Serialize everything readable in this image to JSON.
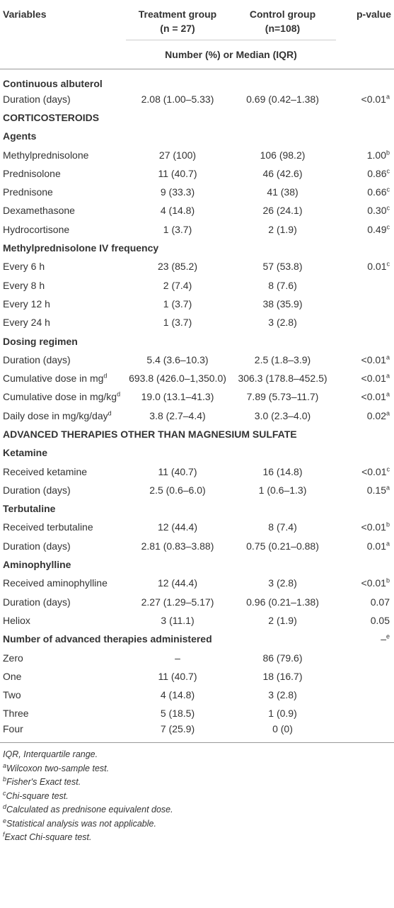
{
  "header": {
    "variables": "Variables",
    "treatment": "Treatment group",
    "treatment_n": "(n = 27)",
    "control": "Control group",
    "control_n": "(n=108)",
    "p": "p-value",
    "subheader": "Number (%) or Median (IQR)"
  },
  "rows": [
    {
      "heading": "Continuous albuterol"
    },
    {
      "label": "Duration (days)",
      "treatment": "2.08 (1.00–5.33)",
      "control": "0.69 (0.42–1.38)",
      "p": "<0.01",
      "p_sup": "a"
    },
    {
      "heading": "CORTICOSTEROIDS"
    },
    {
      "heading": "Agents"
    },
    {
      "label": "Methylprednisolone",
      "treatment": "27 (100)",
      "control": "106 (98.2)",
      "p": "1.00",
      "p_sup": "b"
    },
    {
      "label": "Prednisolone",
      "treatment": "11 (40.7)",
      "control": "46 (42.6)",
      "p": "0.86",
      "p_sup": "c"
    },
    {
      "label": "Prednisone",
      "treatment": "9 (33.3)",
      "control": "41 (38)",
      "p": "0.66",
      "p_sup": "c"
    },
    {
      "label": "Dexamethasone",
      "treatment": "4 (14.8)",
      "control": "26 (24.1)",
      "p": "0.30",
      "p_sup": "c"
    },
    {
      "label": "Hydrocortisone",
      "treatment": "1 (3.7)",
      "control": "2 (1.9)",
      "p": "0.49",
      "p_sup": "c"
    },
    {
      "heading": "Methylprednisolone IV frequency"
    },
    {
      "label": "Every 6 h",
      "treatment": "23 (85.2)",
      "control": "57 (53.8)",
      "p": "0.01",
      "p_sup": "c"
    },
    {
      "label": "Every 8 h",
      "treatment": "2 (7.4)",
      "control": "8 (7.6)"
    },
    {
      "label": "Every 12 h",
      "treatment": "1 (3.7)",
      "control": "38 (35.9)"
    },
    {
      "label": "Every 24 h",
      "treatment": "1 (3.7)",
      "control": "3 (2.8)"
    },
    {
      "heading": "Dosing regimen"
    },
    {
      "label": "Duration (days)",
      "treatment": "5.4 (3.6–10.3)",
      "control": "2.5 (1.8–3.9)",
      "p": "<0.01",
      "p_sup": "a"
    },
    {
      "label": "Cumulative dose in mg",
      "label_sup": "d",
      "treatment": "693.8 (426.0–1,350.0)",
      "control": "306.3 (178.8–452.5)",
      "p": "<0.01",
      "p_sup": "a"
    },
    {
      "label": "Cumulative dose in mg/kg",
      "label_sup": "d",
      "treatment": "19.0 (13.1–41.3)",
      "control": "7.89 (5.73–11.7)",
      "p": "<0.01",
      "p_sup": "a"
    },
    {
      "label": "Daily dose in mg/kg/day",
      "label_sup": "d",
      "treatment": "3.8 (2.7–4.4)",
      "control": "3.0 (2.3–4.0)",
      "p": "0.02",
      "p_sup": "a"
    },
    {
      "heading": "ADVANCED THERAPIES OTHER THAN MAGNESIUM SULFATE"
    },
    {
      "heading": "Ketamine"
    },
    {
      "label": "Received ketamine",
      "treatment": "11 (40.7)",
      "control": "16 (14.8)",
      "p": "<0.01",
      "p_sup": "c"
    },
    {
      "label": "Duration (days)",
      "treatment": "2.5 (0.6–6.0)",
      "control": "1 (0.6–1.3)",
      "p": "0.15",
      "p_sup": "a"
    },
    {
      "heading": "Terbutaline"
    },
    {
      "label": "Received terbutaline",
      "treatment": "12 (44.4)",
      "control": "8 (7.4)",
      "p": "<0.01",
      "p_sup": "b"
    },
    {
      "label": "Duration (days)",
      "treatment": "2.81 (0.83–3.88)",
      "control": "0.75 (0.21–0.88)",
      "p": "0.01",
      "p_sup": "a"
    },
    {
      "heading": "Aminophylline"
    },
    {
      "label": "Received aminophylline",
      "treatment": "12 (44.4)",
      "control": "3 (2.8)",
      "p": "<0.01",
      "p_sup": "b"
    },
    {
      "label": "Duration (days)",
      "treatment": "2.27 (1.29–5.17)",
      "control": "0.96 (0.21–1.38)",
      "p": "0.07"
    },
    {
      "label": "Heliox",
      "treatment": "3 (11.1)",
      "control": "2 (1.9)",
      "p": "0.05"
    },
    {
      "heading": "Number of advanced therapies administered",
      "p": "–",
      "p_sup": "e"
    },
    {
      "label": "Zero",
      "treatment": "–",
      "control": "86 (79.6)"
    },
    {
      "label": "One",
      "treatment": "11 (40.7)",
      "control": "18 (16.7)"
    },
    {
      "label": "Two",
      "treatment": "4 (14.8)",
      "control": "3 (2.8)"
    },
    {
      "label": "Three",
      "treatment": "5 (18.5)",
      "control": "1 (0.9)"
    },
    {
      "label": "Four",
      "treatment": "7 (25.9)",
      "control": "0 (0)"
    }
  ],
  "footnotes": [
    {
      "text": "IQR, Interquartile range."
    },
    {
      "sup": "a",
      "text": "Wilcoxon two-sample test."
    },
    {
      "sup": "b",
      "text": "Fisher's Exact test."
    },
    {
      "sup": "c",
      "text": "Chi-square test."
    },
    {
      "sup": "d",
      "text": "Calculated as prednisone equivalent dose."
    },
    {
      "sup": "e",
      "text": "Statistical analysis was not applicable."
    },
    {
      "sup": "f",
      "text": "Exact Chi-square test."
    }
  ]
}
